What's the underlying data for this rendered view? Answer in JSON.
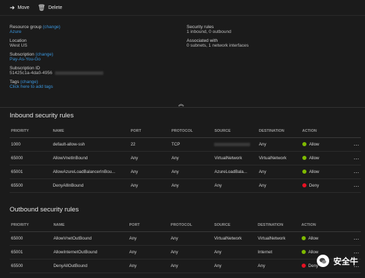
{
  "toolbar": {
    "move_label": "Move",
    "delete_label": "Delete"
  },
  "essentials": {
    "resource_group": {
      "label": "Resource group",
      "change": "(change)",
      "value": "Azure"
    },
    "location": {
      "label": "Location",
      "value": "West US"
    },
    "subscription": {
      "label": "Subscription",
      "change": "(change)",
      "value": "Pay-As-You-Go"
    },
    "subscription_id": {
      "label": "Subscription ID",
      "value": "51425c1a-4da0-4956"
    },
    "tags": {
      "label": "Tags",
      "change": "(change)",
      "add": "Click here to add tags"
    },
    "security_rules": {
      "label": "Security rules",
      "value": "1 inbound, 0 outbound"
    },
    "associated_with": {
      "label": "Associated with",
      "value": "0 subnets, 1 network interfaces"
    },
    "collapse_icon": "chevron-up"
  },
  "inbound": {
    "title": "Inbound security rules",
    "headers": [
      "PRIORITY",
      "NAME",
      "PORT",
      "PROTOCOL",
      "SOURCE",
      "DESTINATION",
      "ACTION"
    ],
    "rows": [
      {
        "priority": "1000",
        "name": "default-allow-ssh",
        "port": "22",
        "protocol": "TCP",
        "source": "",
        "destination": "Any",
        "action": "Allow"
      },
      {
        "priority": "65000",
        "name": "AllowVnetInBound",
        "port": "Any",
        "protocol": "Any",
        "source": "VirtualNetwork",
        "destination": "VirtualNetwork",
        "action": "Allow"
      },
      {
        "priority": "65001",
        "name": "AllowAzureLoadBalancerInBou...",
        "port": "Any",
        "protocol": "Any",
        "source": "AzureLoadBala...",
        "destination": "Any",
        "action": "Allow"
      },
      {
        "priority": "65500",
        "name": "DenyAllInBound",
        "port": "Any",
        "protocol": "Any",
        "source": "Any",
        "destination": "Any",
        "action": "Deny"
      }
    ]
  },
  "outbound": {
    "title": "Outbound security rules",
    "headers": [
      "PRIORITY",
      "NAME",
      "PORT",
      "PROTOCOL",
      "SOURCE",
      "DESTINATION",
      "ACTION"
    ],
    "rows": [
      {
        "priority": "65000",
        "name": "AllowVnetOutBound",
        "port": "Any",
        "protocol": "Any",
        "source": "VirtualNetwork",
        "destination": "VirtualNetwork",
        "action": "Allow"
      },
      {
        "priority": "65001",
        "name": "AllowInternetOutBound",
        "port": "Any",
        "protocol": "Any",
        "source": "Any",
        "destination": "Internet",
        "action": "Allow"
      },
      {
        "priority": "65500",
        "name": "DenyAllOutBound",
        "port": "Any",
        "protocol": "Any",
        "source": "Any",
        "destination": "Any",
        "action": "Deny"
      }
    ]
  },
  "more_label": "...",
  "colors": {
    "allow": "#7fba00",
    "deny": "#e81123",
    "link": "#3a96dd"
  },
  "watermark": {
    "text": "安全牛"
  }
}
